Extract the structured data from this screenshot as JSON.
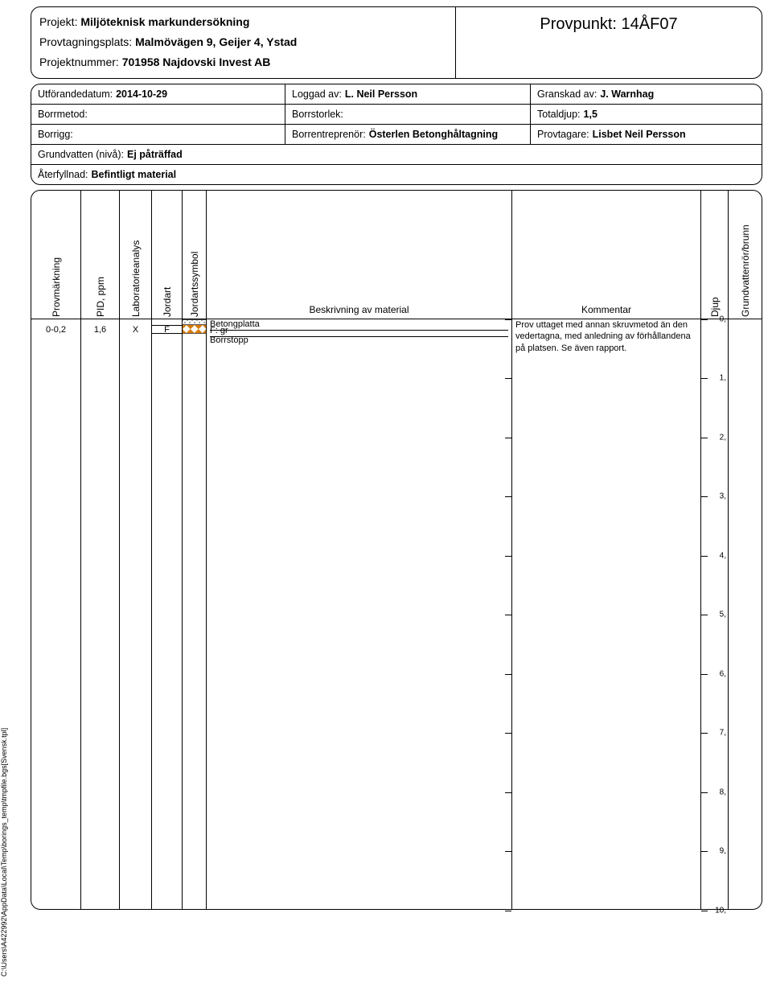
{
  "header": {
    "projekt_label": "Projekt:",
    "projekt_value": "Miljöteknisk markundersökning",
    "plats_label": "Provtagningsplats:",
    "plats_value": "Malmövägen 9, Geijer 4, Ystad",
    "nummer_label": "Projektnummer:",
    "nummer_value": "701958 Najdovski Invest AB",
    "provpunkt_label": "Provpunkt:",
    "provpunkt_value": "14ÅF07"
  },
  "meta": {
    "datum_label": "Utförandedatum:",
    "datum_value": "2014-10-29",
    "loggad_label": "Loggad av:",
    "loggad_value": "L. Neil Persson",
    "granskad_label": "Granskad av:",
    "granskad_value": "J. Warnhag",
    "borrmetod_label": "Borrmetod:",
    "borrmetod_value": "",
    "borrstorlek_label": "Borrstorlek:",
    "borrstorlek_value": "",
    "totaldjup_label": "Totaldjup:",
    "totaldjup_value": "1,5",
    "borrigg_label": "Borrigg:",
    "borrigg_value": "",
    "entreprenor_label": "Borrentreprenör:",
    "entreprenor_value": "Österlen Betonghåltagning",
    "provtagare_label": "Provtagare:",
    "provtagare_value": "Lisbet Neil Persson",
    "grundvatten_label": "Grundvatten (nivå):",
    "grundvatten_value": "Ej påträffad",
    "aterfyllnad_label": "Återfyllnad:",
    "aterfyllnad_value": "Befintligt material"
  },
  "columns": {
    "provmarkning": "Provmärkning",
    "pid": "PID, ppm",
    "lab": "Laboratorieanalys",
    "jordart": "Jordart",
    "symbol": "Jordartssymbol",
    "beskrivning": "Beskrivning av material",
    "kommentar": "Kommentar",
    "djup": "Djup",
    "grundvatten": "Grundvattenrör/brunn"
  },
  "log": {
    "max_depth": 10,
    "ticks": [
      0,
      1,
      2,
      3,
      4,
      5,
      6,
      7,
      8,
      9,
      10
    ],
    "tick_labels": [
      "0,",
      "1,",
      "2,",
      "3,",
      "4,",
      "5,",
      "6,",
      "7,",
      "8,",
      "9,",
      "10,"
    ],
    "rows": [
      {
        "prov": "0-0,2",
        "pid": "1,6",
        "lab": "X",
        "jordart": "F",
        "jordart_from": 0.1,
        "jordart_to": 0.25,
        "symbol_layers": [
          {
            "type": "concrete",
            "from": 0.0,
            "to": 0.1
          },
          {
            "type": "fill",
            "from": 0.1,
            "to": 0.25
          }
        ],
        "beskrivning": [
          {
            "text": "Betongplatta",
            "at": 0.0
          },
          {
            "text": "F: gr",
            "at": 0.12
          },
          {
            "text": "Borrstopp",
            "at": 0.28,
            "noborder": true
          }
        ],
        "kommentar": "Prov uttaget med annan skruvmetod än den vedertagna, med anledning av förhållandena på platsen. Se även rapport.",
        "kommentar_at": 0.0,
        "prov_at": 0.2,
        "pid_at": 0.2,
        "lab_at": 0.2
      }
    ]
  },
  "footer_path": "C:\\Users\\A422992\\AppData\\Local\\Temp\\borings_temp\\tmpfile.bgs[Svensk.tpl]",
  "colors": {
    "border": "#000000",
    "background": "#ffffff",
    "fill_pattern": "#d97a00"
  }
}
